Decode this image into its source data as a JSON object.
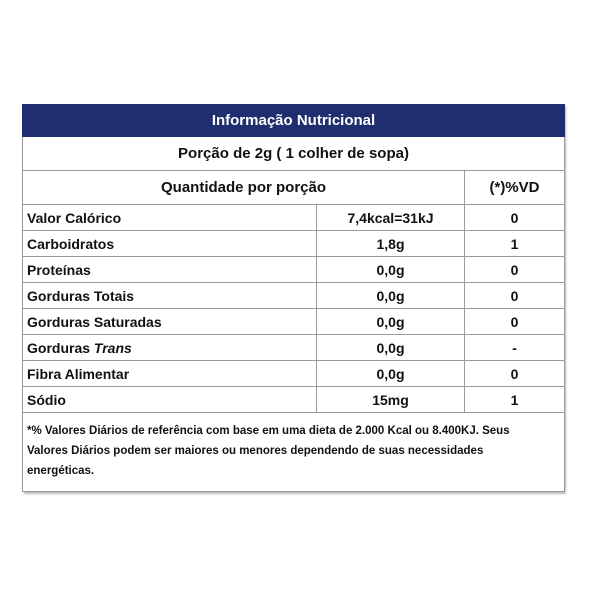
{
  "header": {
    "title": "Informação Nutricional"
  },
  "serving": "Porção de 2g ( 1 colher de sopa)",
  "columns": {
    "quantity": "Quantidade por porção",
    "vd": "(*)%VD"
  },
  "rows": [
    {
      "name": "Valor Calórico",
      "amount": "7,4kcal=31kJ",
      "vd": "0"
    },
    {
      "name": "Carboidratos",
      "amount": "1,8g",
      "vd": "1"
    },
    {
      "name": "Proteínas",
      "amount": "0,0g",
      "vd": "0"
    },
    {
      "name": "Gorduras Totais",
      "amount": "0,0g",
      "vd": "0"
    },
    {
      "name": "Gorduras Saturadas",
      "amount": "0,0g",
      "vd": "0"
    },
    {
      "name": "Gorduras",
      "name_italic": "Trans",
      "amount": "0,0g",
      "vd": "-"
    },
    {
      "name": "Fibra Alimentar",
      "amount": "0,0g",
      "vd": "0"
    },
    {
      "name": "Sódio",
      "amount": "15mg",
      "vd": "1"
    }
  ],
  "footnote": [
    "*% Valores Diários de referência com base em uma dieta de 2.000 Kcal ou 8.400KJ. Seus",
    "Valores Diários podem ser maiores ou menores dependendo de suas necessidades",
    "energéticas."
  ]
}
